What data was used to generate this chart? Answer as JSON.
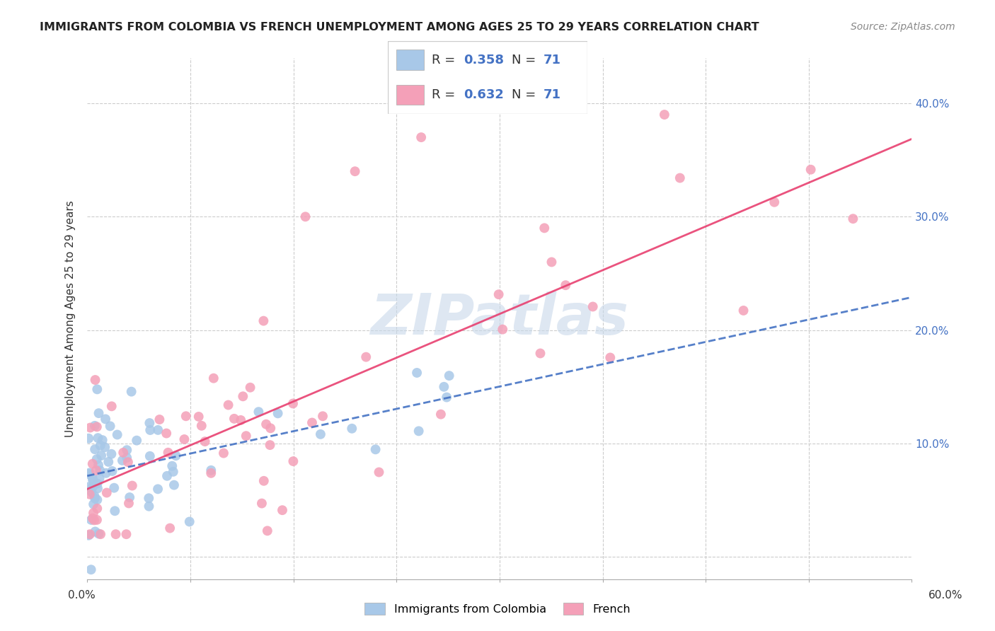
{
  "title": "IMMIGRANTS FROM COLOMBIA VS FRENCH UNEMPLOYMENT AMONG AGES 25 TO 29 YEARS CORRELATION CHART",
  "source": "Source: ZipAtlas.com",
  "ylabel": "Unemployment Among Ages 25 to 29 years",
  "xlim": [
    0.0,
    0.6
  ],
  "ylim": [
    -0.02,
    0.44
  ],
  "yticks": [
    0.0,
    0.1,
    0.2,
    0.3,
    0.4
  ],
  "ytick_labels": [
    "",
    "10.0%",
    "20.0%",
    "30.0%",
    "40.0%"
  ],
  "colombia_color": "#a8c8e8",
  "french_color": "#f4a0b8",
  "colombia_line_color": "#4472c4",
  "french_line_color": "#e84070",
  "colombia_R": 0.358,
  "french_R": 0.632,
  "N": 71,
  "legend_colombia_label": "Immigrants from Colombia",
  "legend_french_label": "French",
  "grid_color": "#cccccc",
  "watermark_color": "#c8d8ea",
  "xtick_positions": [
    0.0,
    0.075,
    0.15,
    0.225,
    0.3,
    0.375,
    0.45,
    0.525,
    0.6
  ]
}
